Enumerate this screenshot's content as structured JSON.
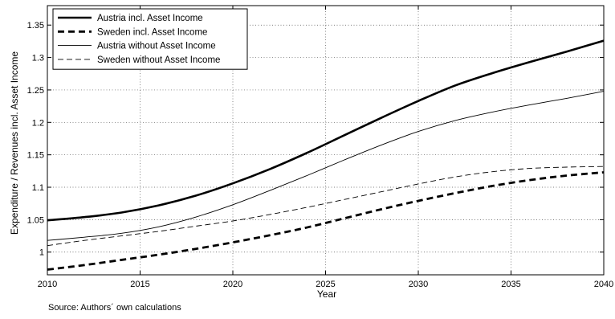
{
  "chart_data": {
    "type": "line",
    "xlabel": "Year",
    "ylabel": "Expenditure / Revenues incl. Asset Income",
    "xlim": [
      2010,
      2040
    ],
    "ylim": [
      0.965,
      1.38
    ],
    "xticks": [
      2010,
      2015,
      2020,
      2025,
      2030,
      2035,
      2040
    ],
    "yticks": [
      1,
      1.05,
      1.1,
      1.15,
      1.2,
      1.25,
      1.3,
      1.35
    ],
    "ytick_labels": [
      "1",
      "1.05",
      "1.1",
      "1.15",
      "1.2",
      "1.25",
      "1.3",
      "1.35"
    ],
    "grid": true,
    "legend_position": "top-left",
    "source": "Source: Authors´ own calculations",
    "series": [
      {
        "name": "Austria incl. Asset Income",
        "style": "solid-thick",
        "x": [
          2010,
          2012,
          2014,
          2016,
          2018,
          2020,
          2022,
          2024,
          2026,
          2028,
          2030,
          2032,
          2034,
          2036,
          2038,
          2040
        ],
        "y": [
          1.049,
          1.054,
          1.061,
          1.072,
          1.087,
          1.106,
          1.128,
          1.153,
          1.18,
          1.207,
          1.233,
          1.257,
          1.276,
          1.293,
          1.309,
          1.326
        ]
      },
      {
        "name": "Sweden incl. Asset Income",
        "style": "dashed-thick",
        "x": [
          2010,
          2012,
          2014,
          2016,
          2018,
          2020,
          2022,
          2024,
          2026,
          2028,
          2030,
          2032,
          2034,
          2036,
          2038,
          2040
        ],
        "y": [
          0.973,
          0.98,
          0.988,
          0.996,
          1.005,
          1.015,
          1.026,
          1.038,
          1.052,
          1.066,
          1.079,
          1.091,
          1.102,
          1.111,
          1.118,
          1.123
        ]
      },
      {
        "name": "Austria without Asset Income",
        "style": "solid-thin",
        "x": [
          2010,
          2012,
          2014,
          2016,
          2018,
          2020,
          2022,
          2024,
          2026,
          2028,
          2030,
          2032,
          2034,
          2036,
          2038,
          2040
        ],
        "y": [
          1.018,
          1.023,
          1.029,
          1.039,
          1.054,
          1.073,
          1.095,
          1.118,
          1.142,
          1.165,
          1.186,
          1.203,
          1.216,
          1.227,
          1.237,
          1.248
        ]
      },
      {
        "name": "Sweden without Asset Income",
        "style": "dashed-thin",
        "x": [
          2010,
          2012,
          2014,
          2016,
          2018,
          2020,
          2022,
          2024,
          2026,
          2028,
          2030,
          2032,
          2034,
          2036,
          2038,
          2040
        ],
        "y": [
          1.01,
          1.018,
          1.025,
          1.032,
          1.04,
          1.048,
          1.058,
          1.069,
          1.081,
          1.093,
          1.105,
          1.116,
          1.124,
          1.129,
          1.131,
          1.132
        ]
      }
    ]
  }
}
